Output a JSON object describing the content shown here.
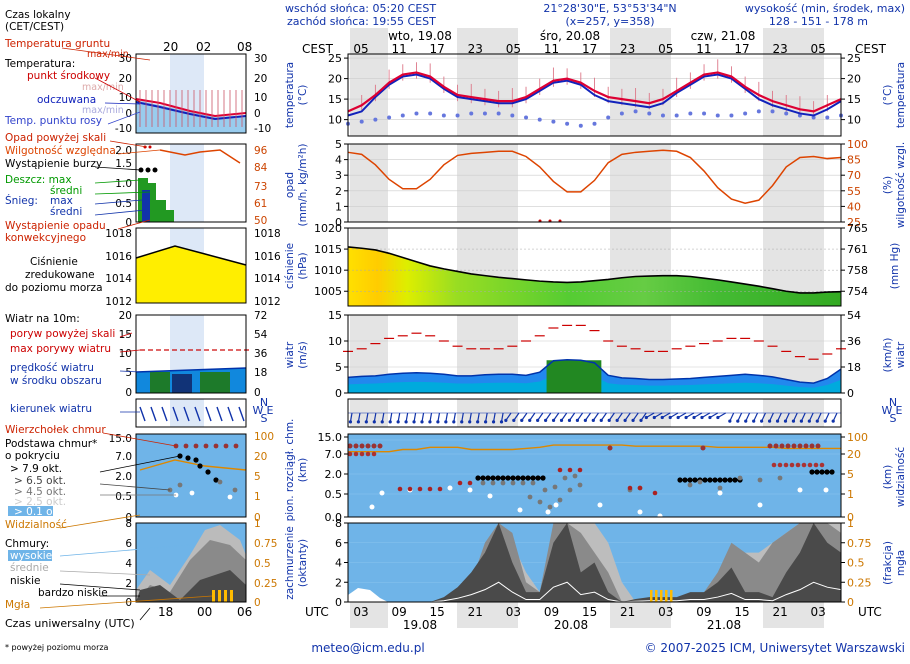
{
  "header": {
    "sunrise": "wschód słońca: 05:20 CEST",
    "sunset": "zachód słońca: 19:55 CEST",
    "coords": "21°28'30\"E, 53°53'34\"N",
    "grid": "(x=257, y=358)",
    "height_title": "wysokość (min, środek, max)",
    "heights": "128 - 151 - 178 m",
    "day_labels": [
      "wto, 19.08",
      "śro, 20.08",
      "czw, 21.08"
    ],
    "tz_top": "CEST",
    "tz_bottom": "UTC"
  },
  "time_axis": {
    "top_hours": [
      "05",
      "11",
      "17",
      "23",
      "05",
      "11",
      "17",
      "23",
      "05",
      "11",
      "17",
      "23",
      "05"
    ],
    "bottom_hours": [
      "03",
      "09",
      "15",
      "21",
      "03",
      "09",
      "15",
      "21",
      "03",
      "09",
      "15",
      "21",
      "03"
    ],
    "bottom_dates": [
      "19.08",
      "20.08",
      "21.08"
    ]
  },
  "legend": {
    "time_local": "Czas lokalny",
    "time_local_sub": "(CET/CEST)",
    "legend_top_hours": [
      "20",
      "02",
      "08"
    ],
    "legend_bottom_hours": [
      "18",
      "00",
      "06"
    ],
    "time_utc": "Czas uniwersalny (UTC)",
    "footnote": "* powyżej poziomu morza",
    "ground_temp": "Temperatura gruntu",
    "ground_temp_sub": "max/min",
    "temperature": "Temperatura:",
    "midpoint": "punkt środkowy",
    "midpoint_sub": "max/min",
    "perceived": "odczuwana",
    "perceived_sub": "max/min",
    "dewpoint": "Temp. punktu rosy",
    "precip_above": "Opad powyżej skali",
    "humidity": "Wilgotność względna",
    "storm": "Wystąpienie burzy",
    "rain_max": "Deszcz: max",
    "rain_mid": "średni",
    "snow_label": "Śnieg:",
    "snow_max": "max",
    "snow_mid": "średni",
    "precip_occur": "Wystąpienie opadu",
    "precip_occur_sub": "konwekcyjnego",
    "pressure_1": "Ciśnienie",
    "pressure_2": "zredukowane",
    "pressure_3": "do poziomu morza",
    "wind_title": "Wiatr na 10m:",
    "gust_above": "poryw powyżej skali",
    "gust_max": "max porywy wiatru",
    "wind_speed": "prędkość wiatru",
    "wind_speed_sub": "w środku obszaru",
    "wind_dir": "kierunek wiatru",
    "cloud_top": "Wierzchołek chmur",
    "cloud_base": "Podstawa chmur*",
    "cloud_base_sub": "o pokryciu",
    "okt": [
      "> 7.9 okt.",
      "> 6.5 okt.",
      "> 4.5 okt.",
      "> 2.5 okt.",
      "> 0.1 okt."
    ],
    "visibility": "Widzialność",
    "clouds": "Chmury:",
    "cl_high": "wysokie",
    "cl_mid": "średnie",
    "cl_low": "niskie",
    "cl_vlow": "bardzo niskie",
    "fog": "Mgła"
  },
  "left_labels": {
    "temp": [
      "temperatura",
      "(°C)"
    ],
    "precip": [
      "opad",
      "(mm/h, kg/m²h)"
    ],
    "press": [
      "ciśnienie",
      "(hPa)"
    ],
    "wind": [
      "wiatr",
      "(m/s)"
    ],
    "cloudbase": [
      "pion. rozciągł. chm.",
      "(km)"
    ],
    "cover": [
      "zachmurzenie",
      "(oktanty)"
    ]
  },
  "right_labels": {
    "temp": [
      "temperatura",
      "(°C)"
    ],
    "humid": [
      "wilgotność wzgl.",
      "(%)"
    ],
    "press": [
      "(mm Hg)"
    ],
    "wind": [
      "wiatr",
      "(km/h)"
    ],
    "compass": [
      "N",
      "W",
      "E",
      "S"
    ],
    "vis": [
      "widzialność",
      "(km)"
    ],
    "fog": [
      "mgła",
      "(frakcja)"
    ]
  },
  "chart_data": [
    {
      "type": "line",
      "title": "temperatura (°C)",
      "ylim": [
        6,
        26
      ],
      "yticks": [
        "25",
        "20",
        "15",
        "10"
      ],
      "series": [
        {
          "name": "temperatura",
          "color": "#dd0033",
          "values": [
            12,
            13.5,
            16,
            19,
            21,
            21.5,
            20.5,
            18,
            16,
            15.5,
            15,
            14.5,
            14.5,
            15.5,
            17.5,
            19.5,
            20,
            19,
            17,
            15.5,
            15,
            14.5,
            14,
            15,
            17,
            19,
            21,
            21.5,
            20.5,
            18,
            16,
            14.5,
            13.5,
            12.5,
            12,
            13.5,
            15
          ]
        },
        {
          "name": "odczuwana",
          "color": "#1122bb",
          "values": [
            11,
            12,
            15.5,
            18.5,
            20.5,
            21,
            20,
            17.5,
            15.5,
            15,
            14.5,
            14,
            14,
            15,
            17,
            19,
            19.5,
            18.5,
            16,
            14.5,
            14,
            13.5,
            13,
            14,
            16.5,
            18.5,
            20.5,
            21,
            20,
            17.5,
            15,
            13.5,
            12.5,
            11.5,
            11,
            12.5,
            14.5
          ]
        },
        {
          "name": "punkt rosy",
          "color": "#5566dd",
          "values": [
            9,
            9.5,
            10,
            10.5,
            11,
            11.5,
            11.5,
            11,
            11,
            11.5,
            11.5,
            11.5,
            11,
            10.5,
            10,
            9.5,
            9,
            8.5,
            9,
            10.5,
            11.5,
            12,
            11.5,
            11,
            11,
            11.5,
            11.5,
            11,
            11,
            11.5,
            12,
            12,
            11.5,
            11,
            10.5,
            10.5,
            11
          ]
        }
      ]
    },
    {
      "type": "line",
      "title": "opad (mm/h, kg/m²h) / wilgotność wzgl. (%)",
      "ylim": [
        0,
        5
      ],
      "yticks": [
        "5",
        "4",
        "3",
        "2",
        "1",
        "0"
      ],
      "yticks_right": [
        "100",
        "85",
        "70",
        "55",
        "40",
        "25"
      ],
      "series": [
        {
          "name": "wilgotność",
          "color": "#dd4400",
          "values": [
            92,
            90,
            80,
            66,
            57,
            57,
            66,
            80,
            89,
            91,
            92,
            93,
            93,
            88,
            78,
            64,
            54,
            54,
            65,
            82,
            90,
            92,
            93,
            94,
            93,
            87,
            74,
            58,
            47,
            43,
            46,
            60,
            78,
            87,
            88,
            86,
            87
          ]
        }
      ]
    },
    {
      "type": "area",
      "title": "ciśnienie (hPa)",
      "ylim": [
        1001.5,
        1020
      ],
      "yticks": [
        "1020",
        "1015",
        "1010",
        "1005"
      ],
      "yticks_right": [
        "765",
        "761",
        "758",
        "754"
      ],
      "series": [
        {
          "name": "ciśnienie",
          "color": "#000000",
          "values": [
            1015.5,
            1015.2,
            1014.8,
            1014,
            1013,
            1012,
            1011,
            1010.3,
            1009.7,
            1009.1,
            1008.7,
            1008.3,
            1008,
            1007.7,
            1007.4,
            1007.2,
            1007.1,
            1007.2,
            1007.5,
            1007.8,
            1008.2,
            1008.5,
            1008.6,
            1008.7,
            1008.7,
            1008.5,
            1008.1,
            1007.7,
            1007.2,
            1006.7,
            1006.2,
            1005.6,
            1005,
            1004.6,
            1004.6,
            1004.8,
            1004.9
          ]
        }
      ]
    },
    {
      "type": "area",
      "title": "wiatr (m/s)",
      "ylim": [
        0,
        15
      ],
      "yticks": [
        "15",
        "10",
        "5",
        "0"
      ],
      "yticks_right": [
        "54",
        "36",
        "18",
        "0"
      ],
      "series": [
        {
          "name": "prędkość wiatru",
          "color": "#0055cc",
          "values": [
            3,
            3.2,
            3.3,
            3.6,
            3.8,
            3.9,
            3.8,
            3.6,
            3.3,
            3.3,
            3.5,
            3.6,
            3.6,
            3.4,
            4,
            6.2,
            6.4,
            6.3,
            5.8,
            3.4,
            2.9,
            2.8,
            2.6,
            2.6,
            2.7,
            2.8,
            3,
            3.2,
            3.4,
            3.6,
            3.4,
            3.1,
            2.6,
            2.1,
            1.9,
            2.8,
            4.6
          ]
        },
        {
          "name": "max porywy",
          "color": "#cc0000",
          "values": [
            8,
            8.5,
            9.5,
            10.5,
            11,
            11.5,
            11,
            10,
            9,
            8.5,
            8.5,
            8.5,
            9,
            10,
            11,
            12.5,
            13,
            13,
            12,
            10,
            9,
            8.5,
            8,
            8,
            8.5,
            9,
            9.5,
            10,
            10.5,
            10.5,
            10,
            9,
            8,
            7,
            6.5,
            7.5,
            8.5
          ]
        }
      ]
    },
    {
      "type": "scatter",
      "title": "pion. rozciągł. chm. (km) / widzialność (km)",
      "ylim": [
        0,
        15
      ],
      "yticks": [
        "15.0",
        "7.0",
        "2.0",
        "0.5",
        "0.0"
      ],
      "yticks_right": [
        "100",
        "20",
        "5",
        "1",
        "0"
      ],
      "series": [
        {
          "name": "widzialność",
          "color": "#dd8800",
          "values": [
            10,
            10,
            10,
            10,
            11,
            11,
            12,
            12,
            12,
            11,
            11,
            11,
            11,
            11.5,
            12,
            13,
            13,
            13,
            13,
            13,
            13,
            12.5,
            12.5,
            12.5,
            12.5,
            12.5,
            12.5,
            12,
            12,
            12,
            12,
            12,
            11.5,
            11.5,
            11.5,
            11.5,
            11.5
          ]
        }
      ]
    },
    {
      "type": "area",
      "title": "zachmurzenie (oktanty) / mgła (frakcja)",
      "ylim": [
        0,
        8
      ],
      "yticks": [
        "8",
        "6",
        "4",
        "2",
        "0"
      ],
      "yticks_right": [
        "1",
        "0.75",
        "0.5",
        "0.25",
        "0"
      ],
      "series": [
        {
          "name": "niskie",
          "color": "#4a4a4a",
          "values": [
            0.5,
            0.3,
            0,
            0,
            0,
            0,
            0,
            0.5,
            1.5,
            3,
            5,
            8,
            4,
            1,
            1,
            6,
            8,
            3,
            4,
            1,
            0,
            0.3,
            0.5,
            0.5,
            0.5,
            1,
            1,
            2,
            3.5,
            1,
            1,
            0.5,
            3,
            5,
            8,
            6,
            5
          ]
        },
        {
          "name": "średnie",
          "color": "#8a8a8a",
          "values": [
            0,
            0,
            0,
            0,
            0,
            0,
            0,
            0,
            0,
            2,
            6,
            8,
            7,
            2,
            1,
            8,
            8,
            7,
            5,
            3,
            0,
            0,
            0,
            0,
            0,
            0.5,
            1,
            3,
            6,
            5,
            4,
            6,
            7,
            8,
            8,
            8,
            7
          ]
        },
        {
          "name": "wysokie",
          "color": "#bbbbbb",
          "values": [
            0,
            0,
            0,
            0,
            0,
            0,
            0,
            0,
            0,
            0,
            2,
            5,
            6,
            3,
            1,
            7,
            8,
            8,
            8,
            6,
            2,
            0,
            0,
            0,
            0,
            0,
            0,
            1,
            4,
            5,
            5,
            6,
            7,
            8,
            8,
            8,
            8
          ]
        }
      ]
    }
  ],
  "footer": {
    "email": "meteo@icm.edu.pl",
    "copyright": "© 2007-2025 ICM, Uniwersytet Warszawski"
  }
}
